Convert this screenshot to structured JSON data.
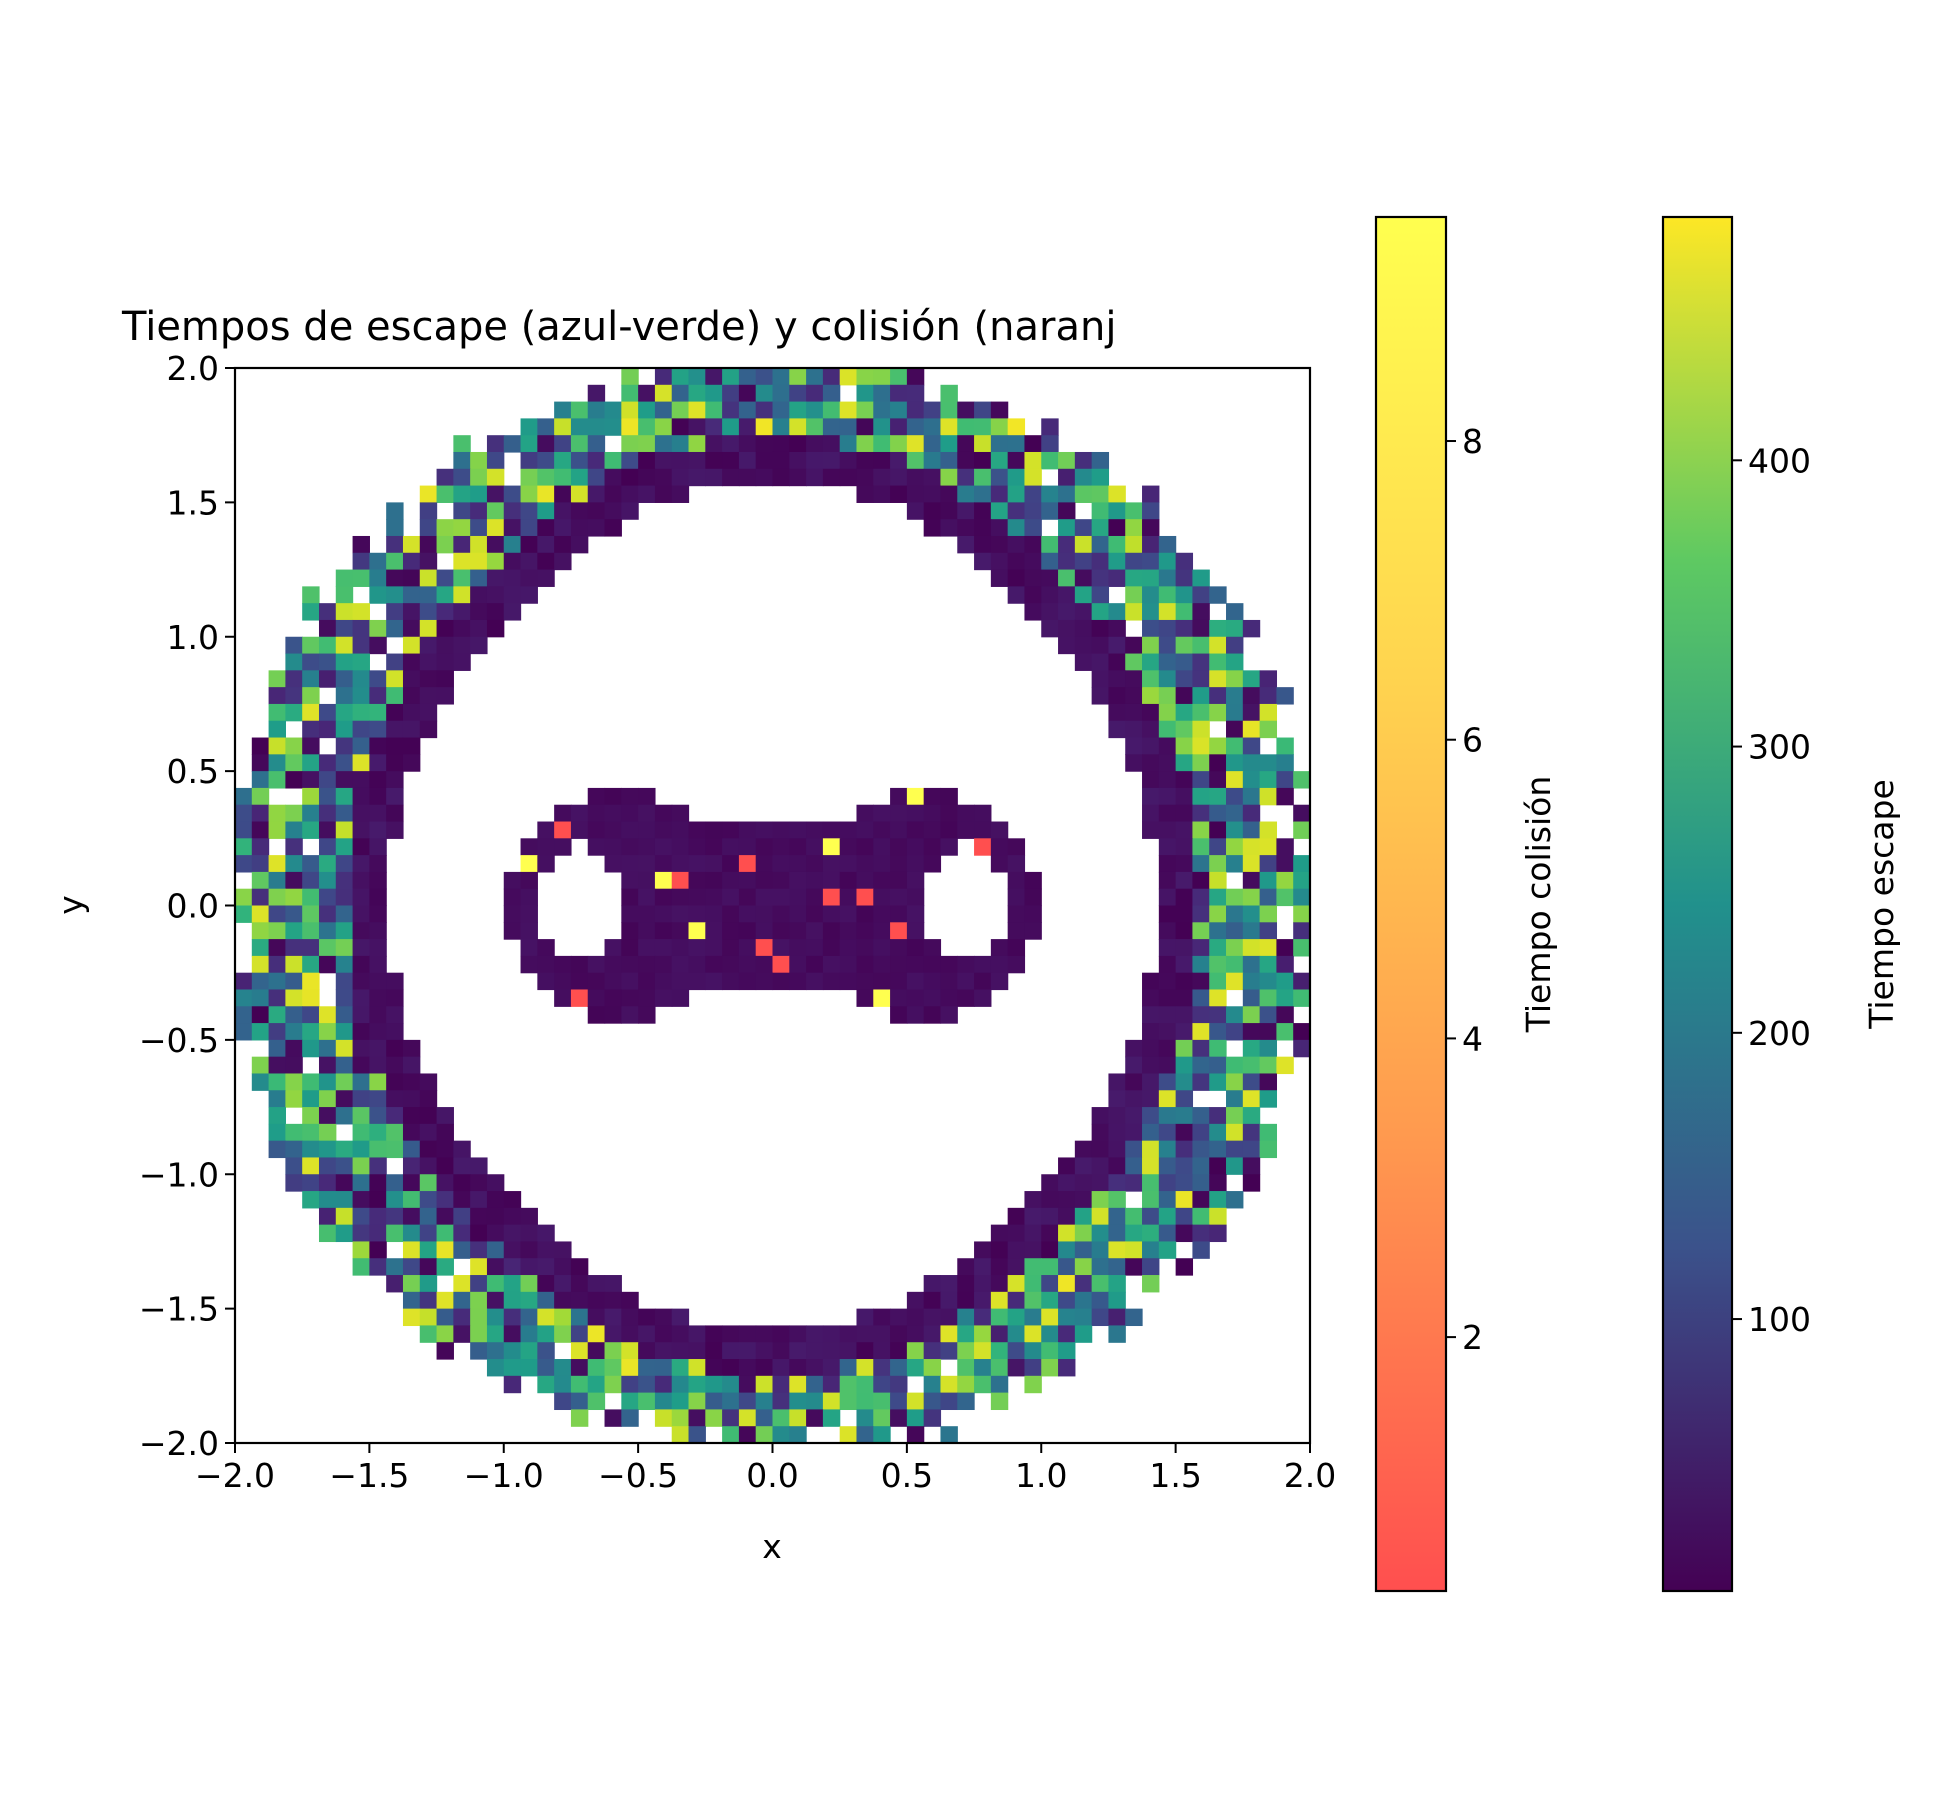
{
  "chart_data": {
    "type": "heatmap",
    "title": "Tiempos de escape (azul-verde) y colisión (naranj",
    "xlabel": "x",
    "ylabel": "y",
    "xlim": [
      -2.0,
      2.0
    ],
    "ylim": [
      -2.0,
      2.0
    ],
    "x_ticks": [
      "−2.0",
      "−1.5",
      "−1.0",
      "−0.5",
      "0.0",
      "0.5",
      "1.0",
      "1.5",
      "2.0"
    ],
    "y_ticks": [
      "2.0",
      "1.5",
      "1.0",
      "0.5",
      "0.0",
      "−0.5",
      "−1.0",
      "−1.5",
      "−2.0"
    ],
    "grid": false,
    "resolution": 64,
    "layers": [
      {
        "name": "Tiempo escape",
        "colormap": "viridis",
        "range": [
          5,
          485
        ],
        "region": "annulus",
        "r_inner_min": 1.33,
        "r_inner_max": 1.5,
        "r_outer": 2.03,
        "dark_band_width": 0.17,
        "typical_values": [
          15,
          60,
          100,
          140,
          200,
          250,
          300,
          350,
          400,
          460
        ]
      },
      {
        "name": "Tiempo colisión",
        "colormap": "autumn_r",
        "range": [
          0.3,
          9.5
        ],
        "region": "peanut",
        "lobe_centers": [
          [
            -0.55,
            0.0
          ],
          [
            0.55,
            0.0
          ]
        ],
        "lobe_radius": 0.43,
        "hole_centers": [
          [
            -0.72,
            0.02
          ],
          [
            0.72,
            0.02
          ]
        ],
        "hole_radius": 0.18,
        "typical_values": [
          0.3,
          0.8,
          1.5,
          9.5
        ]
      }
    ],
    "colorbars": [
      {
        "label": "Tiempo colisión",
        "ticks": [
          "2",
          "4",
          "6",
          "8"
        ],
        "tick_values": [
          2,
          4,
          6,
          8
        ],
        "range": [
          0.3,
          9.5
        ],
        "colors": [
          "#ff4f4f",
          "#ff9a4f",
          "#ffd44f",
          "#ffff4f"
        ]
      },
      {
        "label": "Tiempo escape",
        "ticks": [
          "100",
          "200",
          "300",
          "400"
        ],
        "tick_values": [
          100,
          200,
          300,
          400
        ],
        "range": [
          5,
          485
        ],
        "colors": [
          "#440154",
          "#3b528b",
          "#21918c",
          "#5ec962",
          "#fde725"
        ]
      }
    ]
  }
}
